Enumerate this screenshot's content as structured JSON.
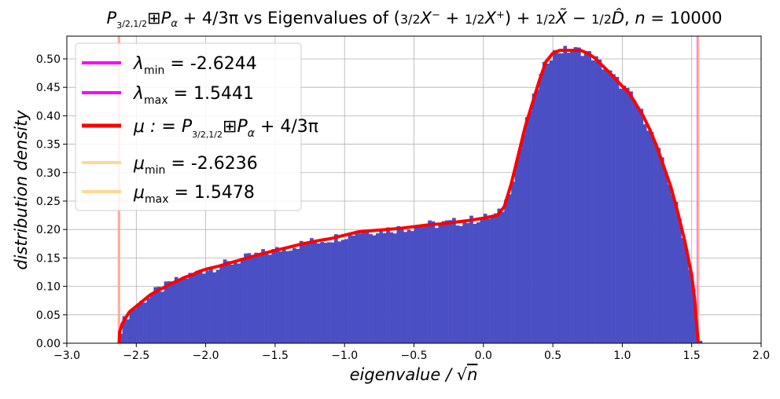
{
  "chart_data": {
    "type": "bar",
    "title": "P_{3/2,1/2} ⊞ P_α + 4/(3π) vs Eigenvalues of (3/2 X⁻ + 1/2 X⁺) + 1/2 X̃ − 1/2 D̂, n = 10000",
    "xlabel": "eigenvalue / √n",
    "ylabel": "distribution density",
    "xlim": [
      -3.0,
      2.0
    ],
    "ylim": [
      0.0,
      0.54
    ],
    "x_ticks": [
      "−3.0",
      "−2.5",
      "−2.0",
      "−1.5",
      "−1.0",
      "−0.5",
      "0.0",
      "0.5",
      "1.0",
      "1.5",
      "2.0"
    ],
    "y_ticks": [
      "0.00",
      "0.05",
      "0.10",
      "0.15",
      "0.20",
      "0.25",
      "0.30",
      "0.35",
      "0.40",
      "0.45",
      "0.50"
    ],
    "grid": true,
    "legend_position": "top-left",
    "histogram": {
      "color": "#4b4fc4",
      "bin_width": 0.025,
      "x_min": -2.625,
      "x_max": 1.55
    },
    "density_curve": {
      "color": "#ff0000",
      "x": [
        -2.6236,
        -2.62,
        -2.6,
        -2.55,
        -2.5,
        -2.45,
        -2.4,
        -2.35,
        -2.3,
        -2.25,
        -2.2,
        -2.15,
        -2.1,
        -2.05,
        -2.0,
        -1.9,
        -1.8,
        -1.7,
        -1.6,
        -1.5,
        -1.4,
        -1.3,
        -1.2,
        -1.1,
        -1.0,
        -0.9,
        -0.8,
        -0.7,
        -0.6,
        -0.5,
        -0.4,
        -0.3,
        -0.2,
        -0.1,
        0.0,
        0.1,
        0.15,
        0.2,
        0.25,
        0.3,
        0.35,
        0.4,
        0.45,
        0.5,
        0.55,
        0.6,
        0.65,
        0.7,
        0.75,
        0.8,
        0.85,
        0.9,
        0.95,
        1.0,
        1.05,
        1.1,
        1.15,
        1.2,
        1.25,
        1.3,
        1.35,
        1.4,
        1.45,
        1.5,
        1.52,
        1.54,
        1.5478
      ],
      "y": [
        0.0,
        0.02,
        0.035,
        0.055,
        0.065,
        0.075,
        0.085,
        0.092,
        0.098,
        0.105,
        0.11,
        0.116,
        0.12,
        0.126,
        0.13,
        0.136,
        0.143,
        0.15,
        0.157,
        0.163,
        0.169,
        0.175,
        0.18,
        0.184,
        0.19,
        0.196,
        0.198,
        0.2,
        0.202,
        0.205,
        0.208,
        0.21,
        0.213,
        0.216,
        0.22,
        0.225,
        0.24,
        0.28,
        0.33,
        0.38,
        0.42,
        0.46,
        0.495,
        0.51,
        0.515,
        0.515,
        0.515,
        0.515,
        0.51,
        0.502,
        0.49,
        0.478,
        0.465,
        0.452,
        0.44,
        0.42,
        0.4,
        0.375,
        0.345,
        0.31,
        0.275,
        0.23,
        0.18,
        0.12,
        0.08,
        0.02,
        0.0
      ]
    },
    "vertical_lines": [
      {
        "x": -2.6244,
        "color": "#ff00ff"
      },
      {
        "x": 1.5441,
        "color": "#ff00ff"
      },
      {
        "x": -2.6236,
        "color": "#ffd280"
      },
      {
        "x": 1.5478,
        "color": "#ffd280"
      }
    ],
    "legend": [
      {
        "label": "λmin = -2.6244",
        "color": "#ff00ff"
      },
      {
        "label": "λmax = 1.5441",
        "color": "#ff00ff"
      },
      {
        "label": "μ : = P_{3/2,1/2} ⊞ P_α + 4/(3π)",
        "color": "#ff0000"
      },
      {
        "label": "μmin = -2.6236",
        "color": "#ffd280"
      },
      {
        "label": "μmax = 1.5478",
        "color": "#ffd280"
      }
    ]
  }
}
